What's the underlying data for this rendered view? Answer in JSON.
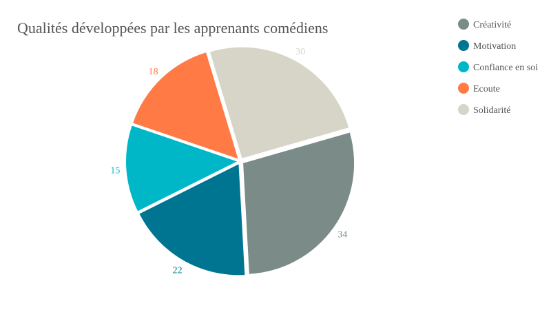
{
  "chart_data": {
    "type": "pie",
    "title": "Qualités développées par les apprenants comédiens",
    "categories": [
      "Créativité",
      "Motivation",
      "Confiance en soi",
      "Ecoute",
      "Solidarité"
    ],
    "values": [
      34,
      22,
      15,
      18,
      30
    ],
    "colors": [
      "#7a8b88",
      "#007592",
      "#00b7c8",
      "#ff7a45",
      "#d6d5c8"
    ],
    "label_colors": [
      "#7a8b88",
      "#007592",
      "#00b7c8",
      "#ff7a45",
      "#d6d5c8"
    ],
    "legend_position": "top-right",
    "start_angle_deg": 74,
    "direction": "clockwise"
  }
}
